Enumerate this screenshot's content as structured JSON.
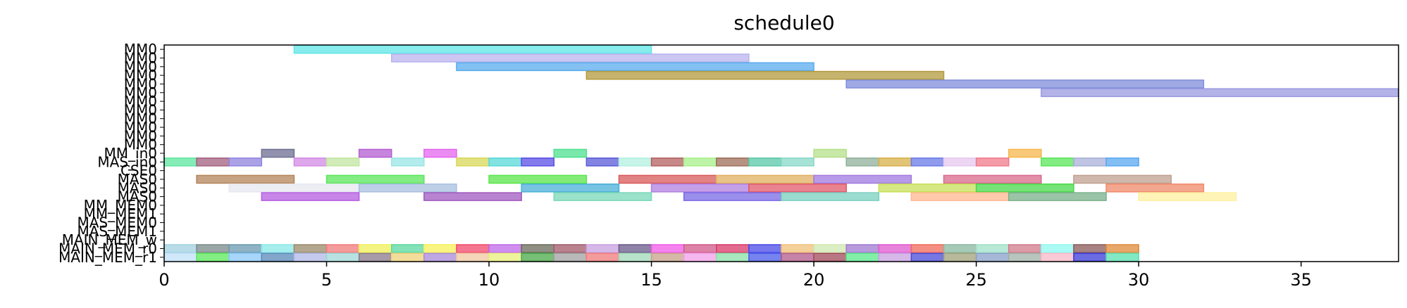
{
  "chart_data": {
    "type": "gantt",
    "title": "schedule0",
    "xlim": [
      0,
      38
    ],
    "x_ticks": [
      0,
      5,
      10,
      15,
      20,
      25,
      30,
      35
    ],
    "grid": false,
    "lanes": [
      "MM0",
      "MM0",
      "MM0",
      "MM0",
      "MM0",
      "MM0",
      "MM0",
      "MM0",
      "MM0",
      "MM0",
      "MM0",
      "MM0",
      "MM_in0",
      "MAS_in0",
      "CSE0",
      "MAS0",
      "MAS0",
      "MAS0",
      "MM_MEM0",
      "MM_MEM1",
      "MAS_MEM0",
      "MAS_MEM1",
      "MAIN_MEM_w",
      "MAIN_MEM_r0",
      "MAIN_MEM_r1"
    ],
    "tasks": [
      {
        "lane": 0,
        "start": 4,
        "end": 15,
        "color": "#5fe6e6"
      },
      {
        "lane": 1,
        "start": 7,
        "end": 18,
        "color": "#b9b3ee"
      },
      {
        "lane": 2,
        "start": 9,
        "end": 20,
        "color": "#5aacee"
      },
      {
        "lane": 3,
        "start": 13,
        "end": 24,
        "color": "#b39a3c"
      },
      {
        "lane": 4,
        "start": 21,
        "end": 32,
        "color": "#7f8ddb"
      },
      {
        "lane": 5,
        "start": 27,
        "end": 38,
        "color": "#9a99e0"
      },
      {
        "lane": 12,
        "start": 3,
        "end": 4,
        "color": "#6e6e93"
      },
      {
        "lane": 12,
        "start": 6,
        "end": 7,
        "color": "#b45ed1"
      },
      {
        "lane": 12,
        "start": 8,
        "end": 9,
        "color": "#e466ee"
      },
      {
        "lane": 12,
        "start": 12,
        "end": 13,
        "color": "#4fe08f"
      },
      {
        "lane": 12,
        "start": 20,
        "end": 21,
        "color": "#b6e08a"
      },
      {
        "lane": 12,
        "start": 26,
        "end": 27,
        "color": "#f5b74e"
      },
      {
        "lane": 13,
        "start": 0,
        "end": 1,
        "color": "#5ee6a0"
      },
      {
        "lane": 13,
        "start": 1,
        "end": 2,
        "color": "#a3607e"
      },
      {
        "lane": 13,
        "start": 2,
        "end": 3,
        "color": "#8f83de"
      },
      {
        "lane": 13,
        "start": 4,
        "end": 5,
        "color": "#d38ae6"
      },
      {
        "lane": 13,
        "start": 5,
        "end": 6,
        "color": "#c2e6a0"
      },
      {
        "lane": 13,
        "start": 7,
        "end": 8,
        "color": "#9ae6e6"
      },
      {
        "lane": 13,
        "start": 9,
        "end": 10,
        "color": "#d8d85a"
      },
      {
        "lane": 13,
        "start": 10,
        "end": 11,
        "color": "#5ad8d8"
      },
      {
        "lane": 13,
        "start": 11,
        "end": 12,
        "color": "#5a4ee6"
      },
      {
        "lane": 13,
        "start": 13,
        "end": 14,
        "color": "#5a5ad8"
      },
      {
        "lane": 13,
        "start": 14,
        "end": 15,
        "color": "#b3f0e0"
      },
      {
        "lane": 13,
        "start": 15,
        "end": 16,
        "color": "#b36060"
      },
      {
        "lane": 13,
        "start": 16,
        "end": 17,
        "color": "#a8f08a"
      },
      {
        "lane": 13,
        "start": 17,
        "end": 18,
        "color": "#9e6e5a"
      },
      {
        "lane": 13,
        "start": 18,
        "end": 19,
        "color": "#5ac8a8"
      },
      {
        "lane": 13,
        "start": 19,
        "end": 20,
        "color": "#8ad8c8"
      },
      {
        "lane": 13,
        "start": 21,
        "end": 22,
        "color": "#8fb09a"
      },
      {
        "lane": 13,
        "start": 22,
        "end": 23,
        "color": "#d8b04a"
      },
      {
        "lane": 13,
        "start": 23,
        "end": 24,
        "color": "#6a7ae6"
      },
      {
        "lane": 13,
        "start": 24,
        "end": 25,
        "color": "#e6c8f0"
      },
      {
        "lane": 13,
        "start": 25,
        "end": 26,
        "color": "#f07a8a"
      },
      {
        "lane": 13,
        "start": 27,
        "end": 28,
        "color": "#5ae65a"
      },
      {
        "lane": 13,
        "start": 28,
        "end": 29,
        "color": "#a8b0d8"
      },
      {
        "lane": 13,
        "start": 29,
        "end": 30,
        "color": "#5aa8f0"
      },
      {
        "lane": 15,
        "start": 1,
        "end": 4,
        "color": "#b3845a"
      },
      {
        "lane": 15,
        "start": 5,
        "end": 8,
        "color": "#5ae65a"
      },
      {
        "lane": 15,
        "start": 10,
        "end": 13,
        "color": "#5ae64a"
      },
      {
        "lane": 15,
        "start": 14,
        "end": 17,
        "color": "#d85a5a"
      },
      {
        "lane": 15,
        "start": 17,
        "end": 20,
        "color": "#e0b060"
      },
      {
        "lane": 15,
        "start": 20,
        "end": 23,
        "color": "#a07ae0"
      },
      {
        "lane": 15,
        "start": 24,
        "end": 27,
        "color": "#d86a8a"
      },
      {
        "lane": 15,
        "start": 28,
        "end": 31,
        "color": "#c0a090"
      },
      {
        "lane": 16,
        "start": 2,
        "end": 6,
        "color": "#e6e8f0"
      },
      {
        "lane": 16,
        "start": 6,
        "end": 9,
        "color": "#a8c0e0"
      },
      {
        "lane": 16,
        "start": 11,
        "end": 14,
        "color": "#4ab0d8"
      },
      {
        "lane": 16,
        "start": 15,
        "end": 18,
        "color": "#b080e0"
      },
      {
        "lane": 16,
        "start": 18,
        "end": 21,
        "color": "#e05a6a"
      },
      {
        "lane": 16,
        "start": 22,
        "end": 25,
        "color": "#c8e05a"
      },
      {
        "lane": 16,
        "start": 25,
        "end": 28,
        "color": "#4ad84a"
      },
      {
        "lane": 16,
        "start": 29,
        "end": 32,
        "color": "#f08a6a"
      },
      {
        "lane": 17,
        "start": 3,
        "end": 6,
        "color": "#b45ee0"
      },
      {
        "lane": 17,
        "start": 8,
        "end": 11,
        "color": "#a05ac0"
      },
      {
        "lane": 17,
        "start": 12,
        "end": 15,
        "color": "#7ad8b8"
      },
      {
        "lane": 17,
        "start": 16,
        "end": 19,
        "color": "#7a6ae6"
      },
      {
        "lane": 17,
        "start": 19,
        "end": 22,
        "color": "#7ad0c0"
      },
      {
        "lane": 17,
        "start": 23,
        "end": 26,
        "color": "#ffb890"
      },
      {
        "lane": 17,
        "start": 26,
        "end": 29,
        "color": "#7ab08a"
      },
      {
        "lane": 17,
        "start": 30,
        "end": 33,
        "color": "#fff0a0"
      },
      {
        "lane": 23,
        "start": 0,
        "end": 1,
        "color": "#a0d0e0"
      },
      {
        "lane": 23,
        "start": 1,
        "end": 2,
        "color": "#7a8a8a"
      },
      {
        "lane": 23,
        "start": 2,
        "end": 3,
        "color": "#6a9ab0"
      },
      {
        "lane": 23,
        "start": 3,
        "end": 4,
        "color": "#8ae8e8"
      },
      {
        "lane": 23,
        "start": 4,
        "end": 5,
        "color": "#9a8a6a"
      },
      {
        "lane": 23,
        "start": 5,
        "end": 6,
        "color": "#f07a7a"
      },
      {
        "lane": 23,
        "start": 6,
        "end": 7,
        "color": "#f0f05a"
      },
      {
        "lane": 23,
        "start": 7,
        "end": 8,
        "color": "#5ad8a0"
      },
      {
        "lane": 23,
        "start": 8,
        "end": 9,
        "color": "#f8f05a"
      },
      {
        "lane": 23,
        "start": 9,
        "end": 10,
        "color": "#f04a6a"
      },
      {
        "lane": 23,
        "start": 10,
        "end": 11,
        "color": "#c06ae8"
      },
      {
        "lane": 23,
        "start": 11,
        "end": 12,
        "color": "#6a6a5a"
      },
      {
        "lane": 23,
        "start": 12,
        "end": 13,
        "color": "#a05a6a"
      },
      {
        "lane": 23,
        "start": 13,
        "end": 14,
        "color": "#c8a0e0"
      },
      {
        "lane": 23,
        "start": 14,
        "end": 15,
        "color": "#6a5a8a"
      },
      {
        "lane": 23,
        "start": 15,
        "end": 16,
        "color": "#f05ae8"
      },
      {
        "lane": 23,
        "start": 16,
        "end": 17,
        "color": "#d05a8a"
      },
      {
        "lane": 23,
        "start": 17,
        "end": 18,
        "color": "#d83a6a"
      },
      {
        "lane": 23,
        "start": 18,
        "end": 19,
        "color": "#4a4ae8"
      },
      {
        "lane": 23,
        "start": 19,
        "end": 20,
        "color": "#f0c07a"
      },
      {
        "lane": 23,
        "start": 20,
        "end": 21,
        "color": "#d0e8b0"
      },
      {
        "lane": 23,
        "start": 21,
        "end": 22,
        "color": "#a07ad0"
      },
      {
        "lane": 23,
        "start": 22,
        "end": 23,
        "color": "#e05ad0"
      },
      {
        "lane": 23,
        "start": 23,
        "end": 24,
        "color": "#f06a5a"
      },
      {
        "lane": 23,
        "start": 24,
        "end": 25,
        "color": "#8ab8a0"
      },
      {
        "lane": 23,
        "start": 25,
        "end": 26,
        "color": "#a0e0c8"
      },
      {
        "lane": 23,
        "start": 26,
        "end": 27,
        "color": "#d07a8a"
      },
      {
        "lane": 23,
        "start": 27,
        "end": 28,
        "color": "#90f8f0"
      },
      {
        "lane": 23,
        "start": 28,
        "end": 29,
        "color": "#8a5a5a"
      },
      {
        "lane": 23,
        "start": 29,
        "end": 30,
        "color": "#e08a3a"
      },
      {
        "lane": 24,
        "start": 0,
        "end": 1,
        "color": "#c0e0f8"
      },
      {
        "lane": 24,
        "start": 1,
        "end": 2,
        "color": "#5ae85a"
      },
      {
        "lane": 24,
        "start": 2,
        "end": 3,
        "color": "#8ac8f8"
      },
      {
        "lane": 24,
        "start": 3,
        "end": 4,
        "color": "#5a8ab8"
      },
      {
        "lane": 24,
        "start": 4,
        "end": 5,
        "color": "#b0b8e8"
      },
      {
        "lane": 24,
        "start": 5,
        "end": 6,
        "color": "#a0d8d8"
      },
      {
        "lane": 24,
        "start": 6,
        "end": 7,
        "color": "#8a7a8a"
      },
      {
        "lane": 24,
        "start": 7,
        "end": 8,
        "color": "#f0d07a"
      },
      {
        "lane": 24,
        "start": 8,
        "end": 9,
        "color": "#a88ad8"
      },
      {
        "lane": 24,
        "start": 9,
        "end": 10,
        "color": "#f0c8a0"
      },
      {
        "lane": 24,
        "start": 10,
        "end": 11,
        "color": "#e8f07a"
      },
      {
        "lane": 24,
        "start": 11,
        "end": 12,
        "color": "#4aa84a"
      },
      {
        "lane": 24,
        "start": 12,
        "end": 13,
        "color": "#a0a0a0"
      },
      {
        "lane": 24,
        "start": 13,
        "end": 14,
        "color": "#f07a7a"
      },
      {
        "lane": 24,
        "start": 14,
        "end": 15,
        "color": "#a0d8b8"
      },
      {
        "lane": 24,
        "start": 15,
        "end": 16,
        "color": "#c8a08a"
      },
      {
        "lane": 24,
        "start": 16,
        "end": 17,
        "color": "#f0a0e8"
      },
      {
        "lane": 24,
        "start": 17,
        "end": 18,
        "color": "#8ae0a8"
      },
      {
        "lane": 24,
        "start": 18,
        "end": 19,
        "color": "#4a5ae8"
      },
      {
        "lane": 24,
        "start": 19,
        "end": 20,
        "color": "#b05a8a"
      },
      {
        "lane": 24,
        "start": 20,
        "end": 21,
        "color": "#a04a5a"
      },
      {
        "lane": 24,
        "start": 21,
        "end": 22,
        "color": "#5ae88a"
      },
      {
        "lane": 24,
        "start": 22,
        "end": 23,
        "color": "#c8a0e0"
      },
      {
        "lane": 24,
        "start": 23,
        "end": 24,
        "color": "#4a4ad8"
      },
      {
        "lane": 24,
        "start": 24,
        "end": 25,
        "color": "#a0a07a"
      },
      {
        "lane": 24,
        "start": 25,
        "end": 26,
        "color": "#8aa0c8"
      },
      {
        "lane": 24,
        "start": 26,
        "end": 27,
        "color": "#a0b0a8"
      },
      {
        "lane": 24,
        "start": 27,
        "end": 28,
        "color": "#f8b8c8"
      },
      {
        "lane": 24,
        "start": 28,
        "end": 29,
        "color": "#3a3ad8"
      },
      {
        "lane": 24,
        "start": 29,
        "end": 30,
        "color": "#5ae0b0"
      }
    ]
  }
}
